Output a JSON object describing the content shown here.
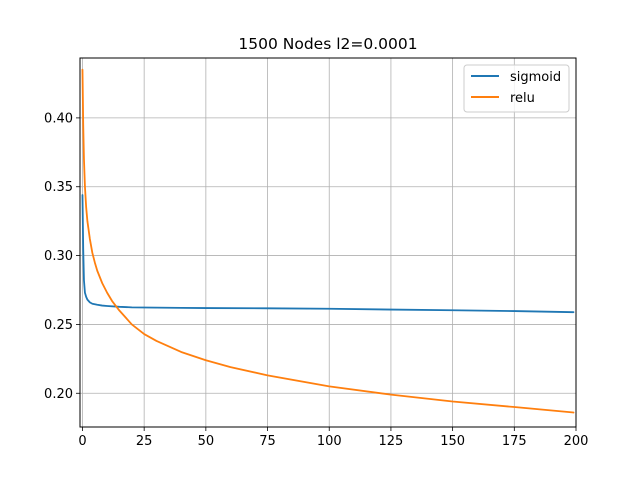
{
  "chart_data": {
    "type": "line",
    "title": "1500 Nodes l2=0.0001",
    "xlabel": "",
    "ylabel": "",
    "xlim": [
      -1,
      200
    ],
    "ylim": [
      0.1755,
      0.4435
    ],
    "xticks": [
      0,
      25,
      50,
      75,
      100,
      125,
      150,
      175,
      200
    ],
    "yticks": [
      0.2,
      0.25,
      0.3,
      0.35,
      0.4
    ],
    "xtick_labels": [
      "0",
      "25",
      "50",
      "75",
      "100",
      "125",
      "150",
      "175",
      "200"
    ],
    "ytick_labels": [
      "0.20",
      "0.25",
      "0.30",
      "0.35",
      "0.40"
    ],
    "grid": true,
    "legend_position": "top-right",
    "series": [
      {
        "name": "sigmoid",
        "color": "#1f77b4",
        "x": [
          0,
          0.3,
          0.6,
          1,
          1.5,
          2,
          3,
          4,
          6,
          8,
          10,
          15,
          20,
          30,
          40,
          50,
          75,
          100,
          125,
          150,
          175,
          199
        ],
        "y": [
          0.344,
          0.305,
          0.282,
          0.273,
          0.27,
          0.268,
          0.266,
          0.265,
          0.2643,
          0.2637,
          0.2634,
          0.2628,
          0.2624,
          0.2622,
          0.262,
          0.2619,
          0.2617,
          0.2614,
          0.2608,
          0.2603,
          0.2597,
          0.2589
        ]
      },
      {
        "name": "relu",
        "color": "#ff7f0e",
        "x": [
          0,
          0.3,
          0.6,
          1,
          1.5,
          2,
          3,
          4,
          5,
          6,
          8,
          10,
          12,
          15,
          20,
          25,
          30,
          40,
          50,
          60,
          75,
          100,
          125,
          150,
          175,
          199
        ],
        "y": [
          0.435,
          0.395,
          0.37,
          0.35,
          0.335,
          0.325,
          0.312,
          0.302,
          0.295,
          0.289,
          0.28,
          0.273,
          0.267,
          0.26,
          0.25,
          0.243,
          0.238,
          0.23,
          0.224,
          0.219,
          0.213,
          0.205,
          0.199,
          0.194,
          0.19,
          0.186
        ]
      }
    ]
  }
}
